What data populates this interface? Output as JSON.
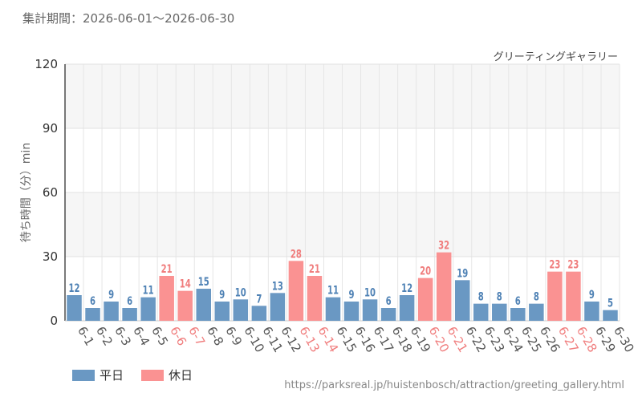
{
  "header": {
    "period": "集計期間：2026-06-01～2026-06-30"
  },
  "chart_data": {
    "type": "bar",
    "title": "グリーティングギャラリー",
    "ylabel": "待ち時間（分）min",
    "ylim": [
      0,
      120
    ],
    "yticks": [
      0,
      30,
      60,
      90,
      120
    ],
    "categories": [
      "6-1",
      "6-2",
      "6-3",
      "6-4",
      "6-5",
      "6-6",
      "6-7",
      "6-8",
      "6-9",
      "6-10",
      "6-11",
      "6-12",
      "6-13",
      "6-14",
      "6-15",
      "6-16",
      "6-17",
      "6-18",
      "6-19",
      "6-20",
      "6-21",
      "6-22",
      "6-23",
      "6-24",
      "6-25",
      "6-26",
      "6-27",
      "6-28",
      "6-29",
      "6-30"
    ],
    "values": [
      12,
      6,
      9,
      6,
      11,
      21,
      14,
      15,
      9,
      10,
      7,
      13,
      28,
      21,
      11,
      9,
      10,
      6,
      12,
      20,
      32,
      19,
      8,
      8,
      6,
      8,
      23,
      23,
      9,
      5
    ],
    "day_type": [
      "平日",
      "平日",
      "平日",
      "平日",
      "平日",
      "休日",
      "休日",
      "平日",
      "平日",
      "平日",
      "平日",
      "平日",
      "休日",
      "休日",
      "平日",
      "平日",
      "平日",
      "平日",
      "平日",
      "休日",
      "休日",
      "平日",
      "平日",
      "平日",
      "平日",
      "平日",
      "休日",
      "休日",
      "平日",
      "平日"
    ],
    "legend": [
      {
        "name": "平日",
        "color": "#6a98c3"
      },
      {
        "name": "休日",
        "color": "#fa9292"
      }
    ],
    "grid": true,
    "legend_position": "bottom-left"
  },
  "colors": {
    "weekday_bar": "#6a98c3",
    "holiday_bar": "#fa9292",
    "weekday_label": "#4f82b5",
    "holiday_label": "#f07d7d",
    "weekday_tick": "#555555",
    "holiday_tick": "#f07d7d"
  },
  "footer": {
    "source": "https://parksreal.jp/huistenbosch/attraction/greeting_gallery.html"
  }
}
